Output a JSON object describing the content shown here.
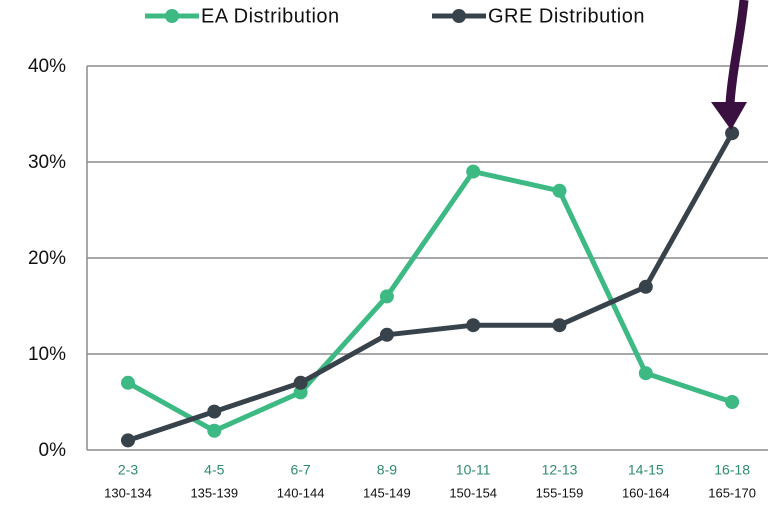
{
  "chart_data": {
    "type": "line",
    "categories": [
      "2-3",
      "4-5",
      "6-7",
      "8-9",
      "10-11",
      "12-13",
      "14-15",
      "16-18"
    ],
    "secondary_categories": [
      "130-134",
      "135-139",
      "140-144",
      "145-149",
      "150-154",
      "155-159",
      "160-164",
      "165-170"
    ],
    "series": [
      {
        "name": "EA Distribution",
        "color": "#3db983",
        "values": [
          7,
          2,
          6,
          16,
          29,
          27,
          8,
          5
        ]
      },
      {
        "name": "GRE Distribution",
        "color": "#37424a",
        "values": [
          1,
          4,
          7,
          12,
          13,
          13,
          17,
          33
        ]
      }
    ],
    "ylim": [
      0,
      40
    ],
    "yticks": [
      {
        "value": 0,
        "label": "0%"
      },
      {
        "value": 10,
        "label": "10%"
      },
      {
        "value": 20,
        "label": "20%"
      },
      {
        "value": 30,
        "label": "30%"
      },
      {
        "value": 40,
        "label": "40%"
      }
    ],
    "grid": true,
    "legend": "top"
  }
}
